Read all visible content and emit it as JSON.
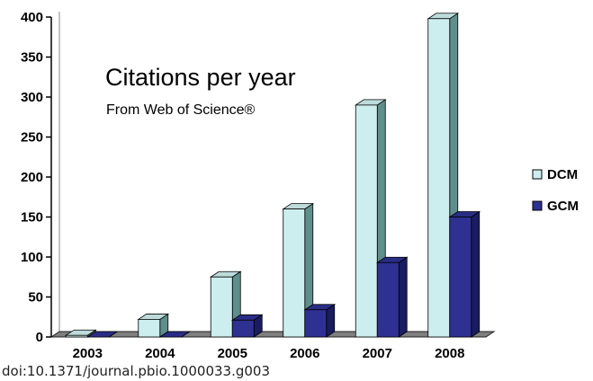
{
  "chart_data": {
    "type": "bar",
    "title": "Citations per year",
    "subtitle": "From Web of Science®",
    "categories": [
      "2003",
      "2004",
      "2005",
      "2006",
      "2007",
      "2008"
    ],
    "series": [
      {
        "name": "DCM",
        "values": [
          2,
          22,
          75,
          160,
          290,
          398
        ],
        "color": "#cdeeee"
      },
      {
        "name": "GCM",
        "values": [
          0,
          0,
          21,
          34,
          93,
          150
        ],
        "color": "#2e3191"
      }
    ],
    "ylim": [
      0,
      400
    ],
    "yticks": [
      "0",
      "50",
      "100",
      "150",
      "200",
      "250",
      "300",
      "350",
      "400"
    ],
    "grid": false,
    "legend_position": "right"
  },
  "caption": "doi:10.1371/journal.pbio.1000033.g003"
}
